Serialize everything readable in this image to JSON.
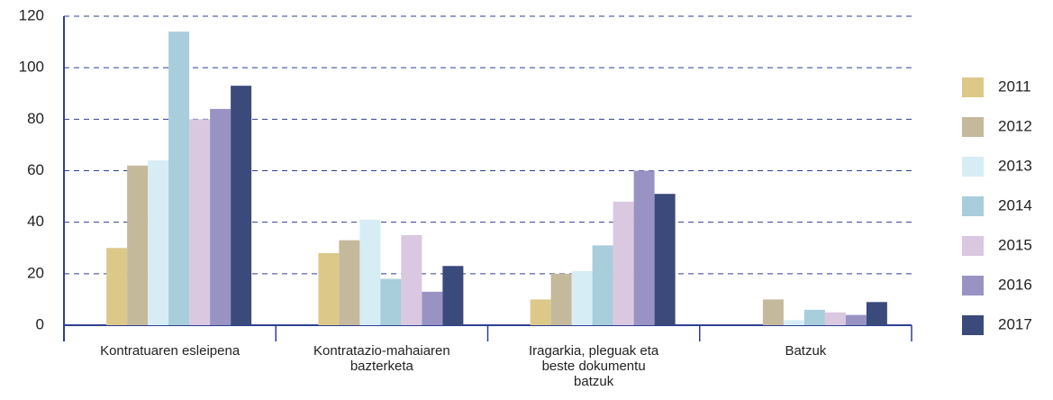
{
  "chart_data": {
    "type": "bar",
    "categories": [
      "Kontratuaren esleipena",
      "Kontratazio-mahaiaren bazterketa",
      "Iragarkia, pleguak eta beste dokumentu batzuk",
      "Batzuk"
    ],
    "series": [
      {
        "name": "2011",
        "color": "#dcc98a",
        "values": [
          30,
          28,
          10,
          0
        ]
      },
      {
        "name": "2012",
        "color": "#c4b99b",
        "values": [
          62,
          33,
          20,
          10
        ]
      },
      {
        "name": "2013",
        "color": "#d6edf5",
        "values": [
          64,
          41,
          21,
          2
        ]
      },
      {
        "name": "2014",
        "color": "#a8cddb",
        "values": [
          114,
          18,
          31,
          6
        ]
      },
      {
        "name": "2015",
        "color": "#dac8e1",
        "values": [
          80,
          35,
          48,
          5
        ]
      },
      {
        "name": "2016",
        "color": "#9993c4",
        "values": [
          84,
          13,
          60,
          4
        ]
      },
      {
        "name": "2017",
        "color": "#3a4a7b",
        "values": [
          93,
          23,
          51,
          9
        ]
      }
    ],
    "ylim": [
      0,
      120
    ],
    "yticks": [
      0,
      20,
      40,
      60,
      80,
      100,
      120
    ],
    "grid": true,
    "legend": "right"
  }
}
